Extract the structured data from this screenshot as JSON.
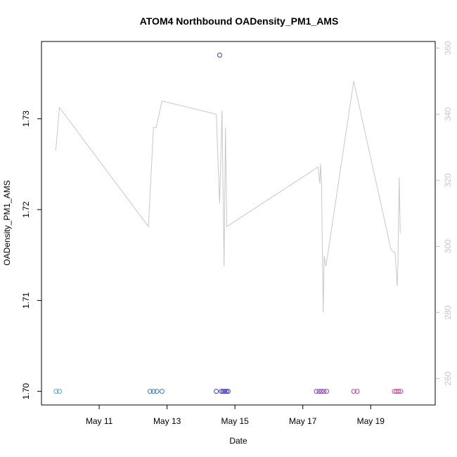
{
  "chart_data": {
    "type": "scatter",
    "title": "ATOM4 Northbound OADensity_PM1_AMS",
    "xlabel": "Date",
    "ylabel": "OADensity_PM1_AMS",
    "x_ticks": [
      "May 11",
      "May 13",
      "May 15",
      "May 17",
      "May 19"
    ],
    "x_tick_days": [
      11,
      13,
      15,
      17,
      19
    ],
    "xlim_days": [
      9.3,
      20.9
    ],
    "ylim": [
      1.6985,
      1.7385
    ],
    "y_ticks": [
      1.7,
      1.71,
      1.72,
      1.73
    ],
    "y_tick_labels": [
      "1.70",
      "1.71",
      "1.72",
      "1.73"
    ],
    "y2_ticks": [
      260,
      280,
      300,
      320,
      340,
      360
    ],
    "y2lim": [
      252,
      362
    ],
    "grid": false,
    "colors": {
      "line": "#c8c8c8",
      "right_axis": "#bdbdbd",
      "frame": "#000000"
    },
    "points": [
      {
        "x_day": 9.73,
        "y": 1.7,
        "color": "#3fb0e8"
      },
      {
        "x_day": 9.83,
        "y": 1.7,
        "color": "#3fb0e8"
      },
      {
        "x_day": 12.5,
        "y": 1.7,
        "color": "#2f7fe6"
      },
      {
        "x_day": 12.6,
        "y": 1.7,
        "color": "#2f7fe6"
      },
      {
        "x_day": 12.7,
        "y": 1.7,
        "color": "#2f7fe6"
      },
      {
        "x_day": 12.85,
        "y": 1.7,
        "color": "#2f7fe6"
      },
      {
        "x_day": 14.45,
        "y": 1.7,
        "color": "#3a3ae6"
      },
      {
        "x_day": 14.6,
        "y": 1.7,
        "color": "#3a3ae6"
      },
      {
        "x_day": 14.65,
        "y": 1.7,
        "color": "#3a3ae6"
      },
      {
        "x_day": 14.7,
        "y": 1.7,
        "color": "#3a3ae6"
      },
      {
        "x_day": 14.75,
        "y": 1.7,
        "color": "#3a3ae6"
      },
      {
        "x_day": 14.8,
        "y": 1.7,
        "color": "#3a3ae6"
      },
      {
        "x_day": 14.55,
        "y": 1.737,
        "color": "#3a3ae6"
      },
      {
        "x_day": 17.4,
        "y": 1.7,
        "color": "#9a3ae0"
      },
      {
        "x_day": 17.48,
        "y": 1.7,
        "color": "#9a3ae0"
      },
      {
        "x_day": 17.55,
        "y": 1.7,
        "color": "#9a3ae0"
      },
      {
        "x_day": 17.62,
        "y": 1.7,
        "color": "#9a3ae0"
      },
      {
        "x_day": 17.7,
        "y": 1.7,
        "color": "#9a3ae0"
      },
      {
        "x_day": 18.5,
        "y": 1.7,
        "color": "#d23ad8"
      },
      {
        "x_day": 18.6,
        "y": 1.7,
        "color": "#d23ad8"
      },
      {
        "x_day": 19.7,
        "y": 1.7,
        "color": "#f03aa8"
      },
      {
        "x_day": 19.76,
        "y": 1.7,
        "color": "#f03aa8"
      },
      {
        "x_day": 19.82,
        "y": 1.7,
        "color": "#f03aa8"
      },
      {
        "x_day": 19.88,
        "y": 1.7,
        "color": "#f03aa8"
      }
    ],
    "line_series": {
      "axis": "right",
      "points": [
        {
          "x_day": 9.72,
          "y": 329
        },
        {
          "x_day": 9.83,
          "y": 342
        },
        {
          "x_day": 12.45,
          "y": 306
        },
        {
          "x_day": 12.6,
          "y": 336
        },
        {
          "x_day": 12.68,
          "y": 336
        },
        {
          "x_day": 12.85,
          "y": 344
        },
        {
          "x_day": 14.45,
          "y": 340
        },
        {
          "x_day": 14.55,
          "y": 313
        },
        {
          "x_day": 14.62,
          "y": 341
        },
        {
          "x_day": 14.68,
          "y": 294
        },
        {
          "x_day": 14.72,
          "y": 336
        },
        {
          "x_day": 14.76,
          "y": 306
        },
        {
          "x_day": 17.45,
          "y": 324
        },
        {
          "x_day": 17.5,
          "y": 319
        },
        {
          "x_day": 17.52,
          "y": 325
        },
        {
          "x_day": 17.55,
          "y": 319
        },
        {
          "x_day": 17.6,
          "y": 280
        },
        {
          "x_day": 17.63,
          "y": 297
        },
        {
          "x_day": 17.68,
          "y": 294
        },
        {
          "x_day": 18.5,
          "y": 350
        },
        {
          "x_day": 19.6,
          "y": 299
        },
        {
          "x_day": 19.72,
          "y": 298
        },
        {
          "x_day": 19.78,
          "y": 288
        },
        {
          "x_day": 19.8,
          "y": 294
        },
        {
          "x_day": 19.84,
          "y": 321
        },
        {
          "x_day": 19.87,
          "y": 304
        }
      ]
    }
  }
}
